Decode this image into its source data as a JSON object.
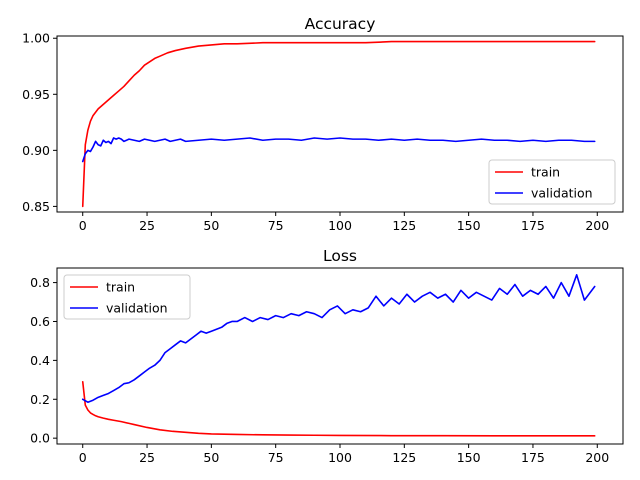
{
  "chart_data": [
    {
      "type": "line",
      "title": "Accuracy",
      "xlabel": "",
      "ylabel": "",
      "xlim": [
        -10,
        210
      ],
      "ylim": [
        0.845,
        1.002
      ],
      "xticks": [
        0,
        25,
        50,
        75,
        100,
        125,
        150,
        175,
        200
      ],
      "xtick_labels": [
        "0",
        "25",
        "50",
        "75",
        "100",
        "125",
        "150",
        "175",
        "200"
      ],
      "yticks": [
        0.85,
        0.9,
        0.95,
        1.0
      ],
      "ytick_labels": [
        "0.85",
        "0.90",
        "0.95",
        "1.00"
      ],
      "legend": "lower-right",
      "grid": false,
      "series": [
        {
          "name": "train",
          "color": "#ff0000",
          "x": [
            0,
            1,
            2,
            3,
            4,
            5,
            6,
            8,
            10,
            12,
            14,
            16,
            18,
            20,
            22,
            24,
            26,
            28,
            30,
            33,
            36,
            40,
            45,
            50,
            55,
            60,
            70,
            80,
            90,
            100,
            110,
            120,
            130,
            140,
            150,
            160,
            170,
            180,
            190,
            199
          ],
          "y": [
            0.85,
            0.905,
            0.918,
            0.926,
            0.931,
            0.934,
            0.937,
            0.941,
            0.945,
            0.949,
            0.953,
            0.957,
            0.962,
            0.967,
            0.971,
            0.976,
            0.979,
            0.982,
            0.984,
            0.987,
            0.989,
            0.991,
            0.993,
            0.994,
            0.995,
            0.995,
            0.996,
            0.996,
            0.996,
            0.996,
            0.996,
            0.997,
            0.997,
            0.997,
            0.997,
            0.997,
            0.997,
            0.997,
            0.997,
            0.997
          ]
        },
        {
          "name": "validation",
          "color": "#0000ff",
          "x": [
            0,
            1,
            2,
            3,
            4,
            5,
            6,
            7,
            8,
            9,
            10,
            11,
            12,
            13,
            14,
            15,
            16,
            18,
            20,
            22,
            24,
            26,
            28,
            30,
            32,
            34,
            36,
            38,
            40,
            45,
            50,
            55,
            60,
            65,
            70,
            75,
            80,
            85,
            90,
            95,
            100,
            105,
            110,
            115,
            120,
            125,
            130,
            135,
            140,
            145,
            150,
            155,
            160,
            165,
            170,
            175,
            180,
            185,
            190,
            195,
            199
          ],
          "y": [
            0.89,
            0.897,
            0.9,
            0.899,
            0.903,
            0.908,
            0.905,
            0.904,
            0.909,
            0.907,
            0.908,
            0.906,
            0.911,
            0.91,
            0.911,
            0.91,
            0.908,
            0.91,
            0.909,
            0.908,
            0.91,
            0.909,
            0.908,
            0.909,
            0.91,
            0.908,
            0.909,
            0.91,
            0.908,
            0.909,
            0.91,
            0.909,
            0.91,
            0.911,
            0.909,
            0.91,
            0.91,
            0.909,
            0.911,
            0.91,
            0.911,
            0.91,
            0.91,
            0.909,
            0.91,
            0.909,
            0.91,
            0.909,
            0.909,
            0.908,
            0.909,
            0.91,
            0.909,
            0.909,
            0.908,
            0.909,
            0.908,
            0.909,
            0.909,
            0.908,
            0.908
          ]
        }
      ]
    },
    {
      "type": "line",
      "title": "Loss",
      "xlabel": "",
      "ylabel": "",
      "xlim": [
        -10,
        210
      ],
      "ylim": [
        -0.03,
        0.875
      ],
      "xticks": [
        0,
        25,
        50,
        75,
        100,
        125,
        150,
        175,
        200
      ],
      "xtick_labels": [
        "0",
        "25",
        "50",
        "75",
        "100",
        "125",
        "150",
        "175",
        "200"
      ],
      "yticks": [
        0.0,
        0.2,
        0.4,
        0.6,
        0.8
      ],
      "ytick_labels": [
        "0.0",
        "0.2",
        "0.4",
        "0.6",
        "0.8"
      ],
      "legend": "upper-left",
      "grid": false,
      "series": [
        {
          "name": "train",
          "color": "#ff0000",
          "x": [
            0,
            1,
            2,
            3,
            4,
            5,
            6,
            8,
            10,
            12,
            15,
            18,
            20,
            25,
            30,
            35,
            40,
            45,
            50,
            60,
            70,
            80,
            90,
            100,
            120,
            140,
            160,
            180,
            199
          ],
          "y": [
            0.29,
            0.17,
            0.145,
            0.13,
            0.122,
            0.115,
            0.11,
            0.103,
            0.097,
            0.092,
            0.085,
            0.076,
            0.07,
            0.055,
            0.043,
            0.035,
            0.03,
            0.025,
            0.022,
            0.019,
            0.017,
            0.016,
            0.015,
            0.014,
            0.013,
            0.013,
            0.012,
            0.012,
            0.012
          ]
        },
        {
          "name": "validation",
          "color": "#0000ff",
          "x": [
            0,
            2,
            4,
            6,
            8,
            10,
            12,
            14,
            16,
            18,
            20,
            22,
            24,
            26,
            28,
            30,
            32,
            34,
            36,
            38,
            40,
            42,
            44,
            46,
            48,
            50,
            52,
            54,
            56,
            58,
            60,
            63,
            66,
            69,
            72,
            75,
            78,
            81,
            84,
            87,
            90,
            93,
            96,
            99,
            102,
            105,
            108,
            111,
            114,
            117,
            120,
            123,
            126,
            129,
            132,
            135,
            138,
            141,
            144,
            147,
            150,
            153,
            156,
            159,
            162,
            165,
            168,
            171,
            174,
            177,
            180,
            183,
            186,
            189,
            192,
            195,
            199
          ],
          "y": [
            0.2,
            0.185,
            0.195,
            0.21,
            0.22,
            0.23,
            0.245,
            0.26,
            0.28,
            0.285,
            0.3,
            0.32,
            0.34,
            0.36,
            0.375,
            0.4,
            0.44,
            0.46,
            0.48,
            0.5,
            0.49,
            0.51,
            0.53,
            0.55,
            0.54,
            0.55,
            0.56,
            0.57,
            0.59,
            0.6,
            0.6,
            0.62,
            0.6,
            0.62,
            0.61,
            0.63,
            0.62,
            0.64,
            0.63,
            0.65,
            0.64,
            0.62,
            0.66,
            0.68,
            0.64,
            0.66,
            0.65,
            0.67,
            0.73,
            0.68,
            0.72,
            0.69,
            0.74,
            0.7,
            0.73,
            0.75,
            0.72,
            0.74,
            0.7,
            0.76,
            0.72,
            0.75,
            0.73,
            0.71,
            0.77,
            0.74,
            0.79,
            0.73,
            0.76,
            0.74,
            0.78,
            0.72,
            0.8,
            0.73,
            0.84,
            0.71,
            0.78
          ]
        }
      ]
    }
  ]
}
